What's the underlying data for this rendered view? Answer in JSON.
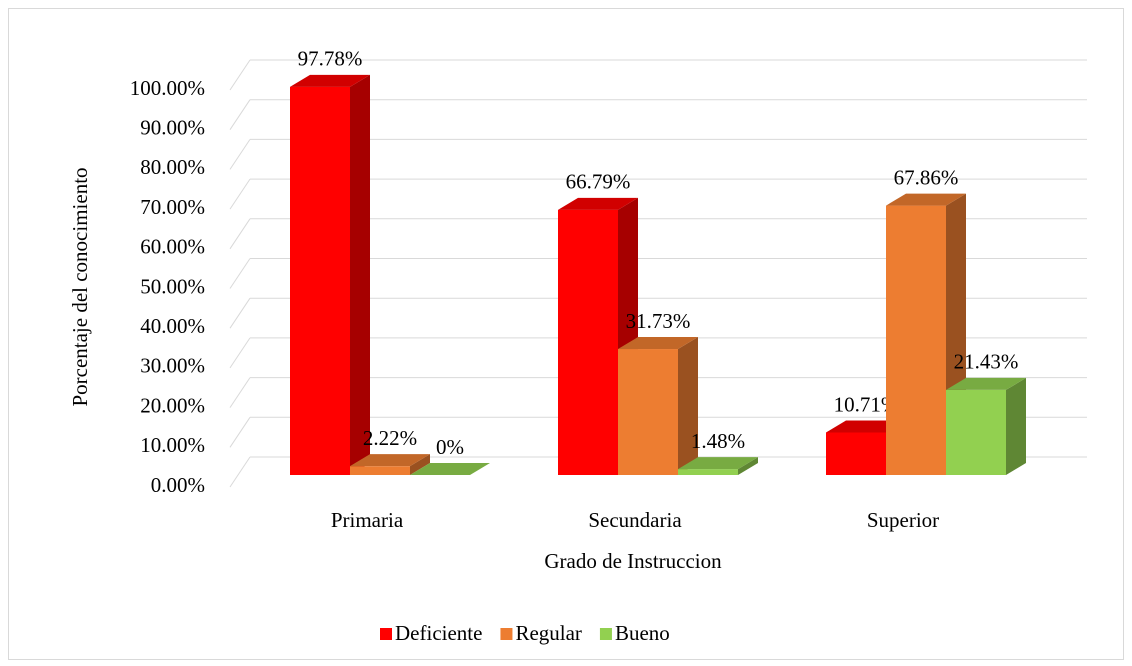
{
  "chart_data": {
    "type": "bar3d",
    "xlabel": "Grado de Instruccion",
    "ylabel": "Porcentaje del conocimiento",
    "categories": [
      "Primaria",
      "Secundaria",
      "Superior"
    ],
    "series": [
      {
        "name": "Deficiente",
        "color": "#ff0000",
        "values": [
          97.78,
          66.79,
          10.71
        ],
        "value_labels": [
          "97.78%",
          "66.79%",
          "10.71%"
        ]
      },
      {
        "name": "Regular",
        "color": "#ed7d31",
        "values": [
          2.22,
          31.73,
          67.86
        ],
        "value_labels": [
          "2.22%",
          "31.73%",
          "67.86%"
        ]
      },
      {
        "name": "Bueno",
        "color": "#92d050",
        "values": [
          0,
          1.48,
          21.43
        ],
        "value_labels": [
          "0%",
          "1.48%",
          "21.43%"
        ]
      }
    ],
    "ylim": [
      0,
      100
    ],
    "yticks": [
      {
        "value": 0,
        "label": "0.00%"
      },
      {
        "value": 10,
        "label": "10.00%"
      },
      {
        "value": 20,
        "label": "20.00%"
      },
      {
        "value": 30,
        "label": "30.00%"
      },
      {
        "value": 40,
        "label": "40.00%"
      },
      {
        "value": 50,
        "label": "50.00%"
      },
      {
        "value": 60,
        "label": "60.00%"
      },
      {
        "value": 70,
        "label": "70.00%"
      },
      {
        "value": 80,
        "label": "80.00%"
      },
      {
        "value": 90,
        "label": "90.00%"
      },
      {
        "value": 100,
        "label": "100.00%"
      }
    ],
    "grid": true,
    "legend": "bottom"
  }
}
